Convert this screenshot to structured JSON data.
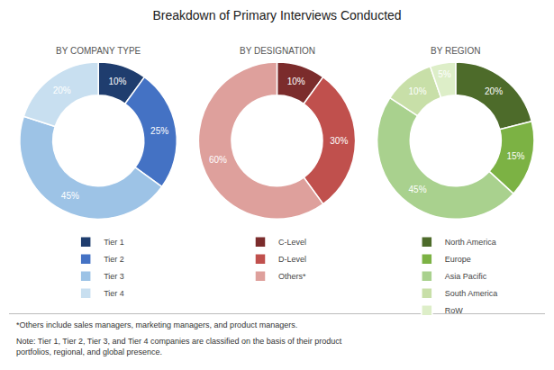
{
  "chart_data": [
    {
      "type": "pie",
      "title": "Breakdown of Primary Interviews Conducted",
      "subtitle": "BY COMPANY TYPE",
      "categories": [
        "Tier 1",
        "Tier 2",
        "Tier 3",
        "Tier 4"
      ],
      "values": [
        10,
        25,
        45,
        20
      ],
      "value_labels": [
        "10%",
        "25%",
        "45%",
        "20%"
      ],
      "colors": [
        "#1f3d6e",
        "#4472c4",
        "#9dc3e6",
        "#c8dff0"
      ],
      "data_labels": true,
      "legend": "bottom",
      "annotations": [
        "*Others include sales managers, marketing managers, and product managers.",
        "Note: Tier 1, Tier 2, Tier 3, and Tier 4 companies are classified on the basis of their product\nportfolios, regional, and global presence."
      ]
    },
    {
      "type": "pie",
      "subtitle": "BY DESIGNATION",
      "categories": [
        "C-Level",
        "D-Level",
        "Others*"
      ],
      "values": [
        10,
        30,
        60
      ],
      "value_labels": [
        "10%",
        "30%",
        "60%"
      ],
      "colors": [
        "#7b2c2c",
        "#c0504d",
        "#dea09c"
      ],
      "data_labels": true,
      "legend": "bottom"
    },
    {
      "type": "pie",
      "subtitle": "BY REGION",
      "categories": [
        "North America",
        "Europe",
        "Asia Pacific",
        "South America",
        "RoW"
      ],
      "values": [
        20,
        15,
        45,
        10,
        5
      ],
      "value_labels": [
        "20%",
        "15%",
        "45%",
        "10%",
        "5%"
      ],
      "colors": [
        "#4d6b2a",
        "#7cb244",
        "#a9d18e",
        "#c8dfa8",
        "#ddeec8"
      ],
      "data_labels": true,
      "legend": "bottom"
    }
  ]
}
